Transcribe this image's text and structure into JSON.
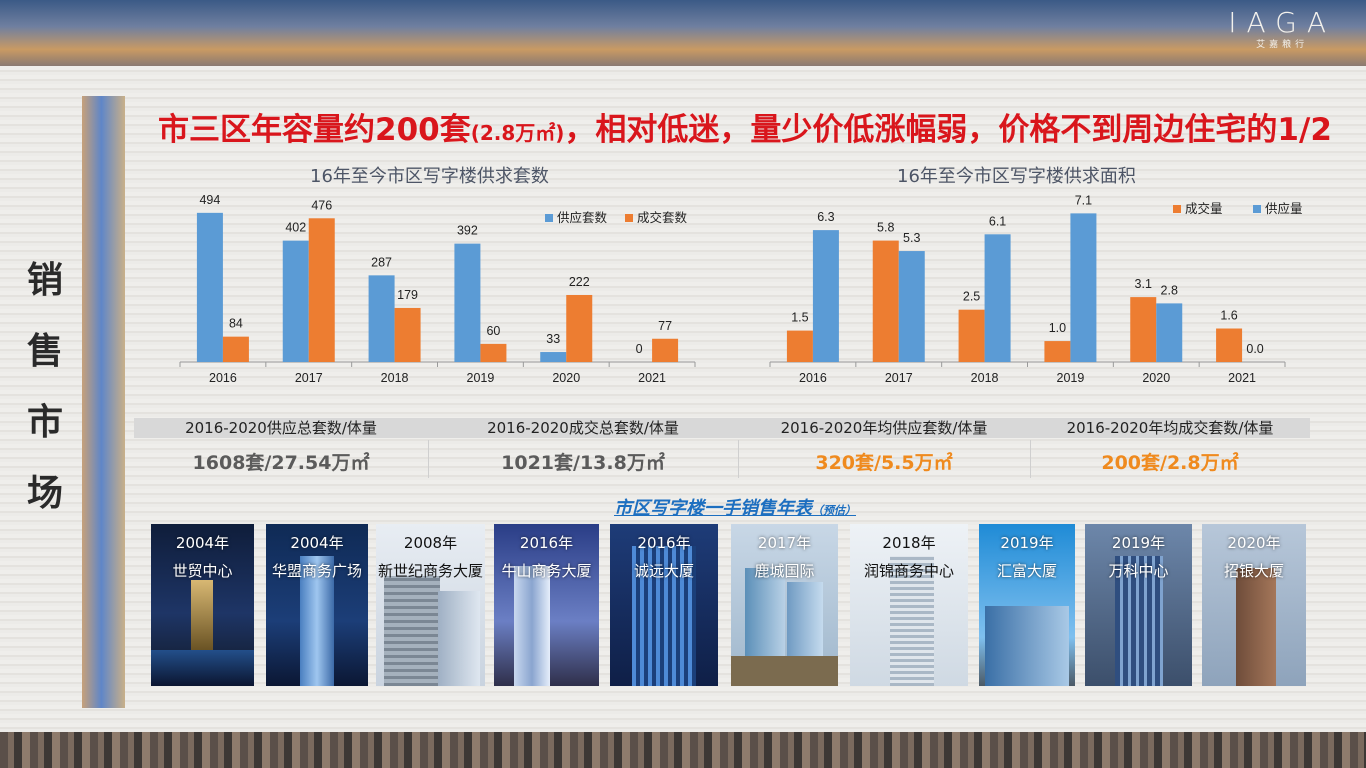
{
  "logo": {
    "main": "IAGA",
    "sub": "艾嘉粮行"
  },
  "sidebar": {
    "title": "销售市场",
    "chars": [
      "销",
      "售",
      "市",
      "场"
    ]
  },
  "headline": {
    "part1": "市三区年容量约200套",
    "part2": "(2.8万㎡)",
    "part3": "，相对低迷，量少价低涨幅弱，价格不到周边住宅的1/2"
  },
  "colors": {
    "supply": "#5b9bd5",
    "deal": "#ed7d31",
    "headline": "#d9161c",
    "accent_orange": "#ef8a1e",
    "timeline_title": "#1d6fc0"
  },
  "chart_data": [
    {
      "type": "bar",
      "title": "16年至今市区写字楼供求套数",
      "categories": [
        "2016",
        "2017",
        "2018",
        "2019",
        "2020",
        "2021"
      ],
      "series": [
        {
          "name": "供应套数",
          "color": "#5b9bd5",
          "values": [
            494,
            402,
            287,
            392,
            33,
            0
          ]
        },
        {
          "name": "成交套数",
          "color": "#ed7d31",
          "values": [
            84,
            476,
            179,
            60,
            222,
            77
          ]
        }
      ],
      "value_labels": {
        "series0": [
          "494",
          "402",
          "287",
          "392",
          "33",
          "0"
        ],
        "series1": [
          "84",
          "476",
          "179",
          "60",
          "222",
          "77"
        ]
      },
      "legend_position": "top-right",
      "ylim": [
        0,
        520
      ],
      "grid": false
    },
    {
      "type": "bar",
      "title": "16年至今市区写字楼供求面积",
      "categories": [
        "2016",
        "2017",
        "2018",
        "2019",
        "2020",
        "2021"
      ],
      "series": [
        {
          "name": "成交量",
          "color": "#ed7d31",
          "values": [
            1.5,
            5.8,
            2.5,
            1.0,
            3.1,
            1.6
          ]
        },
        {
          "name": "供应量",
          "color": "#5b9bd5",
          "values": [
            6.3,
            5.3,
            6.1,
            7.1,
            2.8,
            0.0
          ]
        }
      ],
      "value_labels": {
        "series0": [
          "1.5",
          "5.8",
          "2.5",
          "1.0",
          "3.1",
          "1.6"
        ],
        "series1": [
          "6.3",
          "5.3",
          "6.1",
          "7.1",
          "2.8",
          "0.0"
        ]
      },
      "legend_position": "top-right",
      "ylim": [
        0,
        7.5
      ],
      "grid": false
    }
  ],
  "summary": [
    {
      "label": "2016-2020供应总套数/体量",
      "value": "1608套/27.54万㎡",
      "style": "dark"
    },
    {
      "label": "2016-2020成交总套数/体量",
      "value": "1021套/13.8万㎡",
      "style": "dark"
    },
    {
      "label": "2016-2020年均供应套数/体量",
      "value": "320套/5.5万㎡",
      "style": "orange"
    },
    {
      "label": "2016-2020年均成交套数/体量",
      "value": "200套/2.8万㎡",
      "style": "orange"
    }
  ],
  "timeline": {
    "title": "市区写字楼一手销售年表",
    "subtitle": "（预估）",
    "items": [
      {
        "year": "2004年",
        "name": "世贸中心"
      },
      {
        "year": "2004年",
        "name": "华盟商务广场"
      },
      {
        "year": "2008年",
        "name": "新世纪商务大厦"
      },
      {
        "year": "2016年",
        "name": "牛山商务大厦"
      },
      {
        "year": "2016年",
        "name": "诚远大厦"
      },
      {
        "year": "2017年",
        "name": "鹿城国际"
      },
      {
        "year": "2018年",
        "name": "润锦商务中心"
      },
      {
        "year": "2019年",
        "name": "汇富大厦"
      },
      {
        "year": "2019年",
        "name": "万科中心"
      },
      {
        "year": "2020年",
        "name": "招银大厦"
      }
    ]
  }
}
